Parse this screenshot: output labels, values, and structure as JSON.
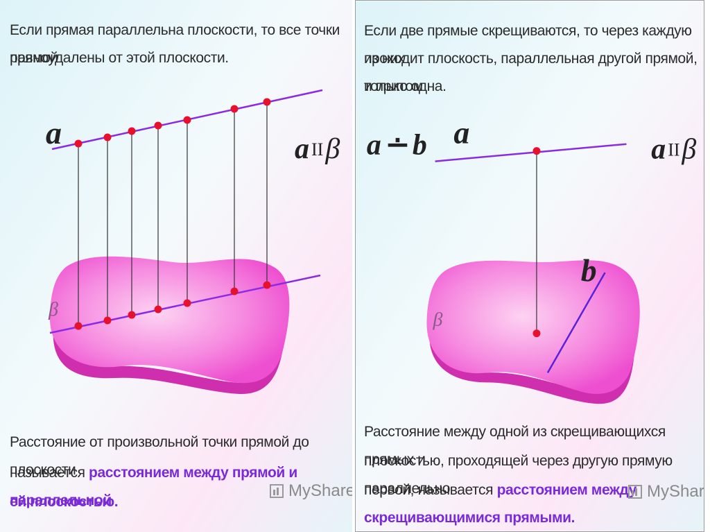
{
  "left": {
    "top_text_line1": "Если прямая параллельна плоскости, то все точки прямой",
    "top_text_line2": "равноудалены от этой плоскости.",
    "line_label": "a",
    "plane_label": "β",
    "relation": {
      "a": "a",
      "sym": "II",
      "b": "β"
    },
    "bottom_line1": "Расстояние от произвольной точки прямой до плоскости",
    "bottom_line2_prefix": "называется ",
    "bottom_line2_highlight": "расстоянием между прямой и параллельной",
    "bottom_line3_highlight": "ей плоскостью.",
    "watermark": "MyShared"
  },
  "right": {
    "top_text_line1": "Если две прямые скрещиваются, то через каждую из них",
    "top_text_line2": "проходит плоскость, параллельная другой прямой, и притом",
    "top_text_line3": "только одна.",
    "skew_label_a": "a",
    "skew_symbol": "∸",
    "skew_label_b": "b",
    "line_label": "a",
    "line_b_label": "b",
    "plane_label": "β",
    "relation": {
      "a": "a",
      "sym": "II",
      "b": "β"
    },
    "bottom_line1": "Расстояние между одной из скрещивающихся прямых и",
    "bottom_line2": "плоскостью, проходящей через другую прямую параллельно",
    "bottom_line3_prefix": "первой, называется ",
    "bottom_line3_highlight": "расстоянием между",
    "bottom_line4_highlight": "скрещивающимися прямыми.",
    "watermark": "MyShared"
  },
  "colors": {
    "plane_fill": "#f15ad8",
    "plane_edge": "#d12aac",
    "line": "#8a2be2",
    "point": "#e8112d",
    "text": "#2b2b2b",
    "highlight": "#7a2ad6"
  }
}
